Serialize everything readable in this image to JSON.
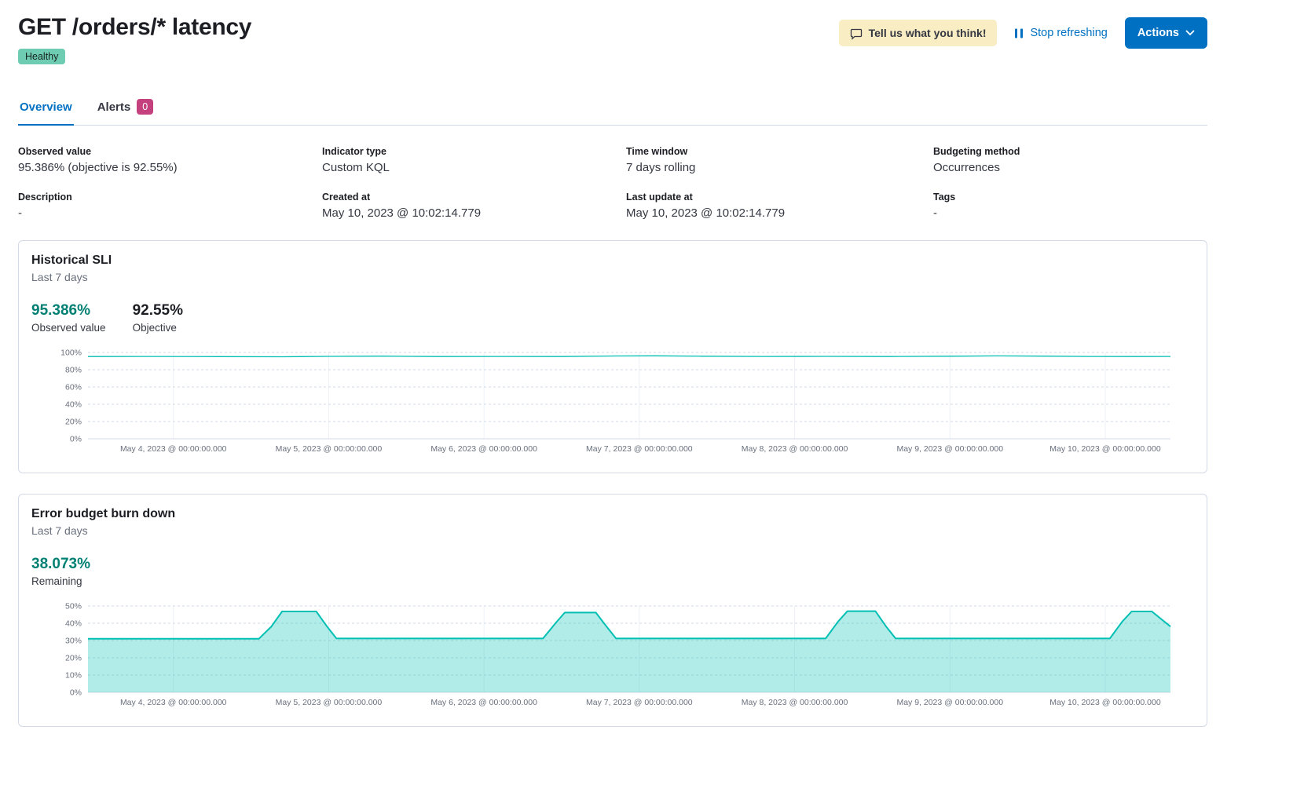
{
  "header": {
    "title": "GET /orders/* latency",
    "status_badge": "Healthy",
    "feedback_button": "Tell us what you think!",
    "stop_refreshing": "Stop refreshing",
    "actions_button": "Actions"
  },
  "tabs": [
    {
      "label": "Overview",
      "active": true
    },
    {
      "label": "Alerts",
      "badge": "0",
      "active": false
    }
  ],
  "definition": [
    {
      "label": "Observed value",
      "value": "95.386% (objective is 92.55%)"
    },
    {
      "label": "Indicator type",
      "value": "Custom KQL"
    },
    {
      "label": "Time window",
      "value": "7 days rolling"
    },
    {
      "label": "Budgeting method",
      "value": "Occurrences"
    },
    {
      "label": "Description",
      "value": "-"
    },
    {
      "label": "Created at",
      "value": "May 10, 2023 @ 10:02:14.779"
    },
    {
      "label": "Last update at",
      "value": "May 10, 2023 @ 10:02:14.779"
    },
    {
      "label": "Tags",
      "value": "-"
    }
  ],
  "historical_sli": {
    "title": "Historical SLI",
    "subtitle": "Last 7 days",
    "stats": [
      {
        "value": "95.386%",
        "label": "Observed value"
      },
      {
        "value": "92.55%",
        "label": "Objective"
      }
    ]
  },
  "error_budget": {
    "title": "Error budget burn down",
    "subtitle": "Last 7 days",
    "stats": [
      {
        "value": "38.073%",
        "label": "Remaining"
      }
    ]
  },
  "colors": {
    "accent_teal": "#00BFB3",
    "stat_teal": "#008073",
    "primary_blue": "#0071c2",
    "healthy_badge": "#6dccb1",
    "alerts_badge": "#c4417e",
    "feedback_bg": "#f9edc4",
    "border": "#d3dae6"
  },
  "chart_data": [
    {
      "id": "sli-chart",
      "type": "line",
      "title": "Historical SLI",
      "x_unit": "days since May 4, 2023 00:00",
      "color": "#00BFB3",
      "stroke_width": 1.3,
      "fill_opacity": 0,
      "xlim": [
        -0.55,
        6.42
      ],
      "ylim": [
        0,
        100
      ],
      "yticks": [
        0,
        20,
        40,
        60,
        80,
        100
      ],
      "xticks": [
        {
          "x": 0,
          "label": "May 4, 2023 @ 00:00:00.000"
        },
        {
          "x": 1,
          "label": "May 5, 2023 @ 00:00:00.000"
        },
        {
          "x": 2,
          "label": "May 6, 2023 @ 00:00:00.000"
        },
        {
          "x": 3,
          "label": "May 7, 2023 @ 00:00:00.000"
        },
        {
          "x": 4,
          "label": "May 8, 2023 @ 00:00:00.000"
        },
        {
          "x": 5,
          "label": "May 9, 2023 @ 00:00:00.000"
        },
        {
          "x": 6,
          "label": "May 10, 2023 @ 00:00:00.000"
        }
      ],
      "points": [
        [
          -0.55,
          95.3
        ],
        [
          -0.2,
          95.4
        ],
        [
          0.3,
          95.2
        ],
        [
          0.7,
          95.0
        ],
        [
          1.0,
          95.5
        ],
        [
          1.35,
          95.7
        ],
        [
          1.7,
          95.3
        ],
        [
          2.1,
          95.4
        ],
        [
          2.5,
          95.3
        ],
        [
          2.85,
          95.9
        ],
        [
          3.1,
          96.1
        ],
        [
          3.4,
          95.6
        ],
        [
          3.8,
          95.4
        ],
        [
          4.2,
          95.5
        ],
        [
          4.6,
          95.3
        ],
        [
          5.0,
          95.6
        ],
        [
          5.3,
          96.0
        ],
        [
          5.6,
          95.7
        ],
        [
          5.9,
          95.4
        ],
        [
          6.2,
          95.3
        ],
        [
          6.42,
          95.4
        ]
      ]
    },
    {
      "id": "burn-chart",
      "type": "area",
      "title": "Error budget burn down",
      "x_unit": "days since May 4, 2023 00:00",
      "color": "#00BFB3",
      "stroke_width": 2,
      "fill_opacity": 0.3,
      "xlim": [
        -0.55,
        6.42
      ],
      "ylim": [
        0,
        50
      ],
      "yticks": [
        0,
        10,
        20,
        30,
        40,
        50
      ],
      "xticks": [
        {
          "x": 0,
          "label": "May 4, 2023 @ 00:00:00.000"
        },
        {
          "x": 1,
          "label": "May 5, 2023 @ 00:00:00.000"
        },
        {
          "x": 2,
          "label": "May 6, 2023 @ 00:00:00.000"
        },
        {
          "x": 3,
          "label": "May 7, 2023 @ 00:00:00.000"
        },
        {
          "x": 4,
          "label": "May 8, 2023 @ 00:00:00.000"
        },
        {
          "x": 5,
          "label": "May 9, 2023 @ 00:00:00.000"
        },
        {
          "x": 6,
          "label": "May 10, 2023 @ 00:00:00.000"
        }
      ],
      "points": [
        [
          -0.55,
          31
        ],
        [
          0.55,
          31
        ],
        [
          0.63,
          38
        ],
        [
          0.7,
          46.8
        ],
        [
          0.92,
          46.8
        ],
        [
          0.99,
          38
        ],
        [
          1.05,
          31.2
        ],
        [
          2.38,
          31.2
        ],
        [
          2.46,
          40
        ],
        [
          2.52,
          46.2
        ],
        [
          2.72,
          46.2
        ],
        [
          2.79,
          38
        ],
        [
          2.85,
          31.2
        ],
        [
          4.2,
          31.2
        ],
        [
          4.28,
          41
        ],
        [
          4.34,
          47
        ],
        [
          4.52,
          47
        ],
        [
          4.59,
          38
        ],
        [
          4.65,
          31.2
        ],
        [
          6.03,
          31.2
        ],
        [
          6.11,
          41
        ],
        [
          6.17,
          46.8
        ],
        [
          6.3,
          46.8
        ],
        [
          6.42,
          38.1
        ]
      ]
    }
  ]
}
